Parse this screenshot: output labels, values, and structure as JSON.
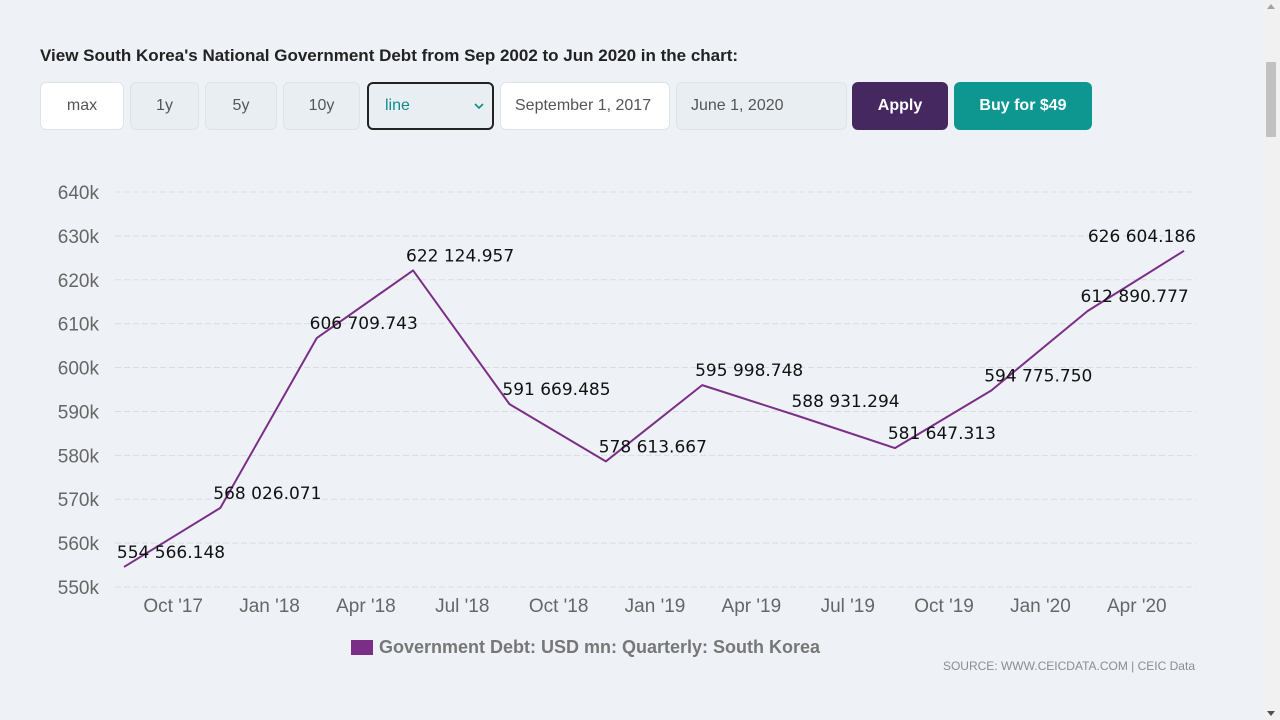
{
  "heading": "View South Korea's National Government Debt from Sep 2002 to Jun 2020 in the chart:",
  "controls": {
    "range_buttons": [
      "max",
      "1y",
      "5y",
      "10y"
    ],
    "chart_type": "line",
    "start_date": "September 1, 2017",
    "end_date": "June 1, 2020",
    "apply_label": "Apply",
    "buy_label": "Buy for $49"
  },
  "colors": {
    "series": "#7b2e86",
    "apply": "#45285f",
    "buy": "#0e9690"
  },
  "source": "SOURCE: WWW.CEICDATA.COM | CEIC Data",
  "chart_data": {
    "type": "line",
    "x_tick_labels": [
      "Oct '17",
      "Jan '18",
      "Apr '18",
      "Jul '18",
      "Oct '18",
      "Jan '19",
      "Apr '19",
      "Jul '19",
      "Oct '19",
      "Jan '20",
      "Apr '20"
    ],
    "y_tick_labels": [
      "550k",
      "560k",
      "570k",
      "580k",
      "590k",
      "600k",
      "610k",
      "620k",
      "630k",
      "640k"
    ],
    "ylim": [
      550000,
      640000
    ],
    "x": [
      "Sep 2017",
      "Dec 2017",
      "Mar 2018",
      "Jun 2018",
      "Sep 2018",
      "Dec 2018",
      "Mar 2019",
      "Jun 2019",
      "Sep 2019",
      "Dec 2019",
      "Mar 2020",
      "Jun 2020"
    ],
    "series": [
      {
        "name": "Government Debt: USD mn: Quarterly: South Korea",
        "values": [
          554566.148,
          568026.071,
          606709.743,
          622124.957,
          591669.485,
          578613.667,
          595998.748,
          588931.294,
          581647.313,
          594775.75,
          612890.777,
          626604.186
        ],
        "labels": [
          "554 566.148",
          "568 026.071",
          "606 709.743",
          "622 124.957",
          "591 669.485",
          "578 613.667",
          "595 998.748",
          "588 931.294",
          "581 647.313",
          "594 775.750",
          "612 890.777",
          "626 604.186"
        ]
      }
    ],
    "grid": true,
    "legend": "bottom-center"
  }
}
